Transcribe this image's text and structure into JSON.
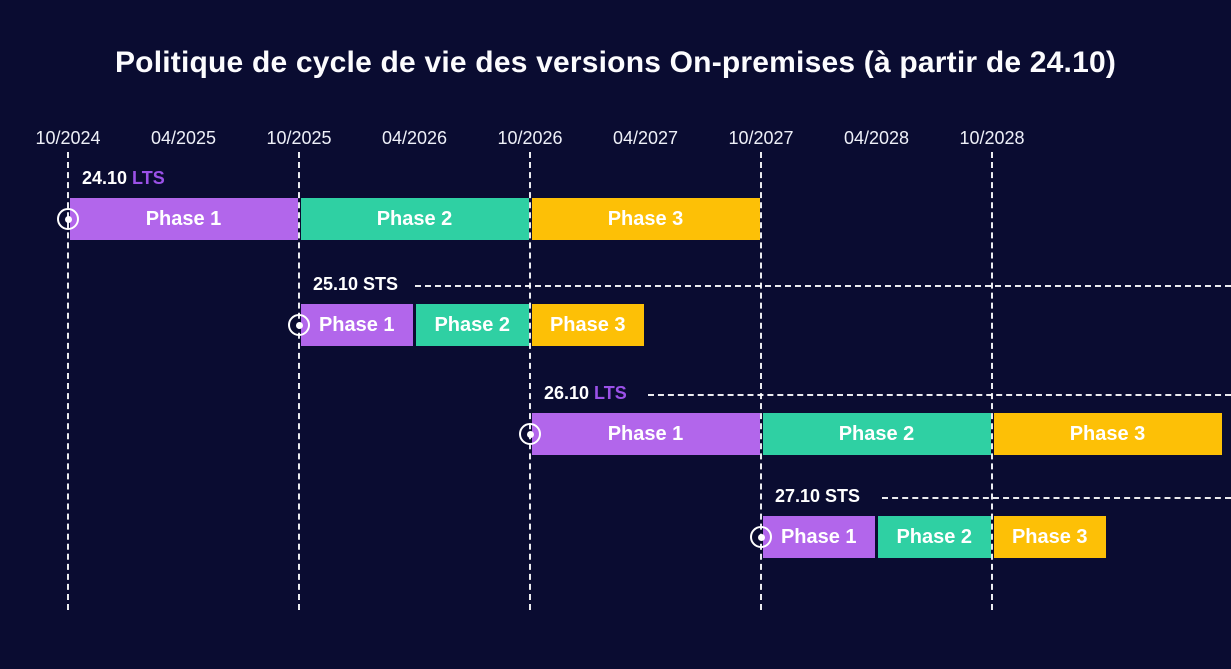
{
  "title": "Politique de cycle de vie des versions On-premises (à partir de 24.10)",
  "colors": {
    "background": "#0a0c31",
    "purple": "#b266eb",
    "teal": "#2fd0a3",
    "yellow": "#fdc006",
    "lts_text": "#9b51e8",
    "sts_text": "#ffffff",
    "white": "#ffffff"
  },
  "icons": {
    "release_start_marker": "circle-dot"
  },
  "chart_data": {
    "type": "bar",
    "subtype": "gantt-timeline",
    "title": "Politique de cycle de vie des versions On-premises (à partir de 24.10)",
    "x_axis": {
      "unit": "MM/YYYY",
      "range": [
        "10/2024",
        "10/2028"
      ],
      "gridlines": "dashed vertical lines on October ticks only"
    },
    "x_ticks": [
      {
        "label": "10/2024",
        "major": true
      },
      {
        "label": "04/2025",
        "major": false
      },
      {
        "label": "10/2025",
        "major": true
      },
      {
        "label": "04/2026",
        "major": false
      },
      {
        "label": "10/2026",
        "major": true
      },
      {
        "label": "04/2027",
        "major": false
      },
      {
        "label": "10/2027",
        "major": true
      },
      {
        "label": "04/2028",
        "major": false
      },
      {
        "label": "10/2028",
        "major": true
      }
    ],
    "series": [
      {
        "version": "24.10",
        "channel": "LTS",
        "channel_color": "#9b51e8",
        "start": "10/2024",
        "continuation_line": false,
        "phases": [
          {
            "label": "Phase 1",
            "start": "10/2024",
            "end": "10/2025",
            "color": "purple"
          },
          {
            "label": "Phase 2",
            "start": "10/2025",
            "end": "10/2026",
            "color": "teal"
          },
          {
            "label": "Phase 3",
            "start": "10/2026",
            "end": "10/2027",
            "color": "yellow"
          }
        ]
      },
      {
        "version": "25.10",
        "channel": "STS",
        "channel_color": "#ffffff",
        "start": "10/2025",
        "continuation_line": true,
        "phases": [
          {
            "label": "Phase 1",
            "start": "10/2025",
            "end": "04/2026",
            "color": "purple"
          },
          {
            "label": "Phase 2",
            "start": "04/2026",
            "end": "10/2026",
            "color": "teal"
          },
          {
            "label": "Phase 3",
            "start": "10/2026",
            "end": "04/2027",
            "color": "yellow"
          }
        ]
      },
      {
        "version": "26.10",
        "channel": "LTS",
        "channel_color": "#9b51e8",
        "start": "10/2026",
        "continuation_line": true,
        "phases": [
          {
            "label": "Phase 1",
            "start": "10/2026",
            "end": "10/2027",
            "color": "purple"
          },
          {
            "label": "Phase 2",
            "start": "10/2027",
            "end": "10/2028",
            "color": "teal"
          },
          {
            "label": "Phase 3",
            "start": "10/2028",
            "end": "10/2029",
            "color": "yellow"
          }
        ]
      },
      {
        "version": "27.10",
        "channel": "STS",
        "channel_color": "#ffffff",
        "start": "10/2027",
        "continuation_line": true,
        "phases": [
          {
            "label": "Phase 1",
            "start": "10/2027",
            "end": "04/2028",
            "color": "purple"
          },
          {
            "label": "Phase 2",
            "start": "04/2028",
            "end": "10/2028",
            "color": "teal"
          },
          {
            "label": "Phase 3",
            "start": "10/2028",
            "end": "04/2029",
            "color": "yellow"
          }
        ]
      }
    ],
    "legend": null
  }
}
